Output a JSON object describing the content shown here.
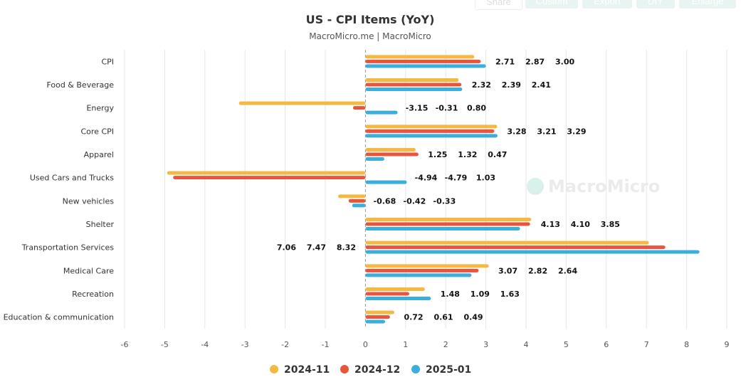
{
  "toolbar": {
    "share": "Share",
    "custom": "Custom",
    "export": "Export",
    "diy": "DIY",
    "enlarge": "Enlarge"
  },
  "watermark": "MacroMicro",
  "chart_data": {
    "type": "bar",
    "orientation": "horizontal",
    "title": "US - CPI Items (YoY)",
    "subtitle": "MacroMicro.me | MacroMicro",
    "categories": [
      "CPI",
      "Food & Beverage",
      "Energy",
      "Core CPI",
      "Apparel",
      "Used Cars and Trucks",
      "New vehicles",
      "Shelter",
      "Transportation Services",
      "Medical Care",
      "Recreation",
      "Education & communication"
    ],
    "series": [
      {
        "name": "2024-11",
        "color": "#f5b942",
        "values": [
          2.71,
          2.32,
          -3.15,
          3.28,
          1.25,
          -4.94,
          -0.68,
          4.13,
          7.06,
          3.07,
          1.48,
          0.72
        ]
      },
      {
        "name": "2024-12",
        "color": "#e8553f",
        "values": [
          2.87,
          2.39,
          -0.31,
          3.21,
          1.32,
          -4.79,
          -0.42,
          4.1,
          7.47,
          2.82,
          1.09,
          0.61
        ]
      },
      {
        "name": "2025-01",
        "color": "#3aaedc",
        "values": [
          3.0,
          2.41,
          0.8,
          3.29,
          0.47,
          1.03,
          -0.33,
          3.85,
          8.32,
          2.64,
          1.63,
          0.49
        ]
      }
    ],
    "xlim": [
      -6,
      9
    ],
    "xticks": [
      -6,
      -5,
      -4,
      -3,
      -2,
      -1,
      0,
      1,
      2,
      3,
      4,
      5,
      6,
      7,
      8,
      9
    ],
    "grid": true,
    "legend": "bottom"
  }
}
